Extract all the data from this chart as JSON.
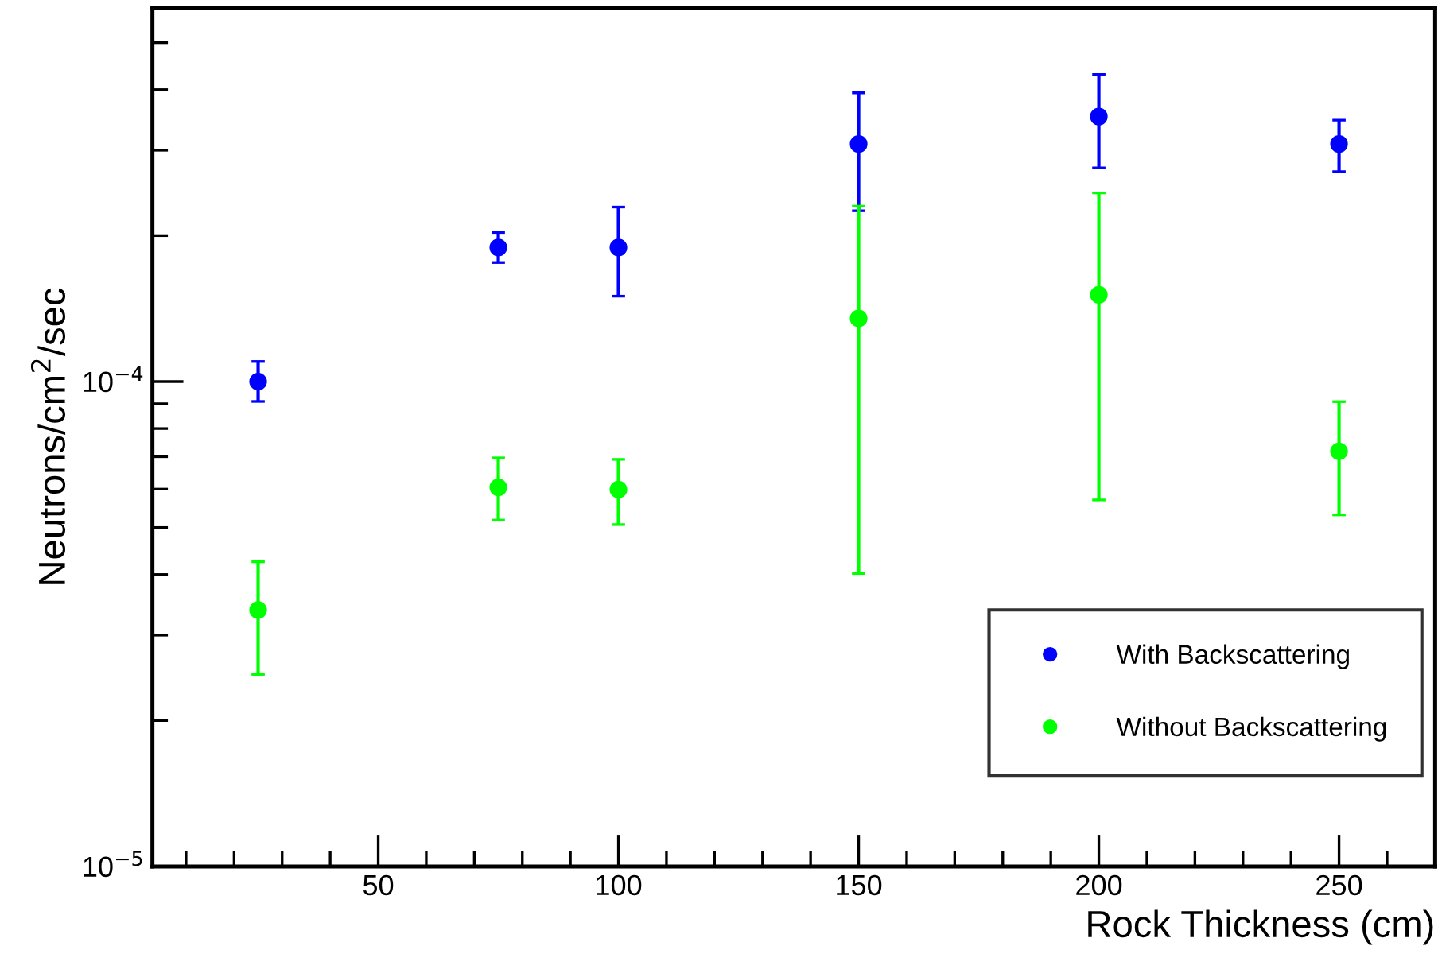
{
  "chart_data": {
    "type": "scatter",
    "xlabel": "Rock Thickness (cm)",
    "ylabel": "Neutrons/cm$^{2}$/sec",
    "x": [
      25,
      75,
      100,
      150,
      200,
      250
    ],
    "series": [
      {
        "name": "With Backscattering",
        "color": "#0000ff",
        "values": [
          0.0001,
          0.000189,
          0.000189,
          0.000309,
          0.000352,
          0.000309
        ],
        "errors": [
          [
            9.1e-05,
            0.00011
          ],
          [
            0.000176,
            0.000203
          ],
          [
            0.00015,
            0.000229
          ],
          [
            0.000225,
            0.000394
          ],
          [
            0.000276,
            0.00043
          ],
          [
            0.000271,
            0.000346
          ]
        ]
      },
      {
        "name": "Without Backscattering",
        "color": "#00ff00",
        "values": [
          3.38e-05,
          6.05e-05,
          5.99e-05,
          0.000135,
          0.000151,
          7.18e-05
        ],
        "errors": [
          [
            2.49e-05,
            4.25e-05
          ],
          [
            5.18e-05,
            6.96e-05
          ],
          [
            5.07e-05,
            6.91e-05
          ],
          [
            4.02e-05,
            0.00023
          ],
          [
            5.7e-05,
            0.000245
          ],
          [
            5.31e-05,
            9.09e-05
          ]
        ]
      }
    ],
    "log": "y",
    "xlim": [
      3,
      270
    ],
    "xticks": [
      50,
      100,
      150,
      200,
      250
    ],
    "ylim": [
      1e-05,
      0.00059
    ],
    "yticks": [
      {
        "value": 1e-05,
        "label": "10$^{−5}$"
      },
      {
        "value": 0.0001,
        "label": "10$^{−4}$"
      }
    ],
    "grid": false,
    "legend": "bottom right",
    "marker": "circle"
  }
}
